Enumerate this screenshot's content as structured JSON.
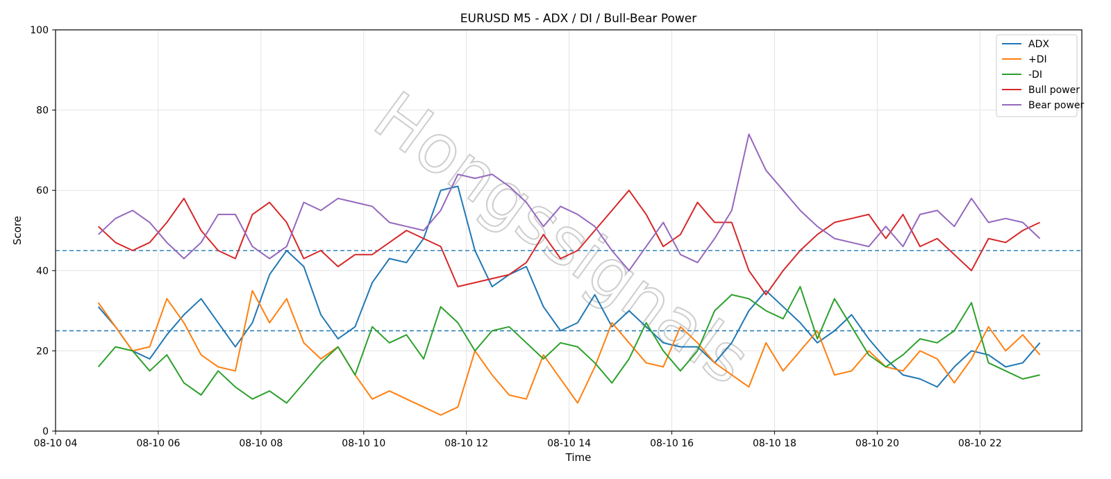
{
  "chart_data": {
    "type": "line",
    "title": "EURUSD M5 - ADX / DI / Bull-Bear Power",
    "xlabel": "Time",
    "ylabel": "Score",
    "xlim": [
      "08-10 04:00",
      "08-10 23:59"
    ],
    "ylim": [
      0,
      100
    ],
    "x_ticks": [
      "08-10 04",
      "08-10 06",
      "08-10 08",
      "08-10 10",
      "08-10 12",
      "08-10 14",
      "08-10 16",
      "08-10 18",
      "08-10 20",
      "08-10 22"
    ],
    "y_ticks": [
      0,
      20,
      40,
      60,
      80,
      100
    ],
    "grid": true,
    "legend_position": "top-right",
    "reference_lines": [
      45,
      25
    ],
    "watermark": "Hongssignals",
    "x_times": [
      "04:50",
      "05:10",
      "05:30",
      "05:50",
      "06:10",
      "06:30",
      "06:50",
      "07:10",
      "07:30",
      "07:50",
      "08:10",
      "08:30",
      "08:50",
      "09:10",
      "09:30",
      "09:50",
      "10:10",
      "10:30",
      "10:50",
      "11:10",
      "11:30",
      "11:50",
      "12:10",
      "12:30",
      "12:50",
      "13:10",
      "13:30",
      "13:50",
      "14:10",
      "14:30",
      "14:50",
      "15:10",
      "15:30",
      "15:50",
      "16:10",
      "16:30",
      "16:50",
      "17:10",
      "17:30",
      "17:50",
      "18:10",
      "18:30",
      "18:50",
      "19:10",
      "19:30",
      "19:50",
      "20:10",
      "20:30",
      "20:50",
      "21:10",
      "21:30",
      "21:50",
      "22:10",
      "22:30",
      "22:50",
      "23:10"
    ],
    "series": [
      {
        "name": "ADX",
        "color": "#1f77b4",
        "values": [
          31,
          26,
          20,
          18,
          24,
          29,
          33,
          27,
          21,
          27,
          39,
          45,
          41,
          29,
          23,
          26,
          37,
          43,
          42,
          48,
          60,
          61,
          45,
          36,
          39,
          41,
          31,
          25,
          27,
          34,
          26,
          30,
          26,
          22,
          21,
          21,
          17,
          22,
          30,
          35,
          31,
          27,
          22,
          25,
          29,
          23,
          18,
          14,
          13,
          11,
          16,
          20,
          19,
          16,
          17,
          22
        ]
      },
      {
        "name": "+DI",
        "color": "#ff7f0e",
        "values": [
          32,
          26,
          20,
          21,
          33,
          27,
          19,
          16,
          15,
          35,
          27,
          33,
          22,
          18,
          21,
          14,
          8,
          10,
          8,
          6,
          4,
          6,
          20,
          14,
          9,
          8,
          19,
          13,
          7,
          16,
          27,
          22,
          17,
          16,
          26,
          22,
          17,
          14,
          11,
          22,
          15,
          20,
          25,
          14,
          15,
          20,
          16,
          15,
          20,
          18,
          12,
          18,
          26,
          20,
          24,
          19
        ]
      },
      {
        "name": "-DI",
        "color": "#2ca02c",
        "values": [
          16,
          21,
          20,
          15,
          19,
          12,
          9,
          15,
          11,
          8,
          10,
          7,
          12,
          17,
          21,
          14,
          26,
          22,
          24,
          18,
          31,
          27,
          20,
          25,
          26,
          22,
          18,
          22,
          21,
          17,
          12,
          18,
          27,
          20,
          15,
          20,
          30,
          34,
          33,
          30,
          28,
          36,
          23,
          33,
          26,
          19,
          16,
          19,
          23,
          22,
          25,
          32,
          17,
          15,
          13,
          14
        ]
      },
      {
        "name": "Bull power",
        "color": "#d62728",
        "values": [
          51,
          47,
          45,
          47,
          52,
          58,
          50,
          45,
          43,
          54,
          57,
          52,
          43,
          45,
          41,
          44,
          44,
          47,
          50,
          48,
          46,
          36,
          37,
          38,
          39,
          42,
          49,
          43,
          45,
          50,
          55,
          60,
          54,
          46,
          49,
          57,
          52,
          52,
          40,
          34,
          40,
          45,
          49,
          52,
          53,
          54,
          48,
          54,
          46,
          48,
          44,
          40,
          48,
          47,
          50,
          52
        ]
      },
      {
        "name": "Bear power",
        "color": "#9467bd",
        "values": [
          49,
          53,
          55,
          52,
          47,
          43,
          47,
          54,
          54,
          46,
          43,
          46,
          57,
          55,
          58,
          57,
          56,
          52,
          51,
          50,
          55,
          64,
          63,
          64,
          61,
          57,
          51,
          56,
          54,
          51,
          45,
          40,
          46,
          52,
          44,
          42,
          48,
          55,
          74,
          65,
          60,
          55,
          51,
          48,
          47,
          46,
          51,
          46,
          54,
          55,
          51,
          58,
          52,
          53,
          52,
          48
        ]
      }
    ]
  }
}
